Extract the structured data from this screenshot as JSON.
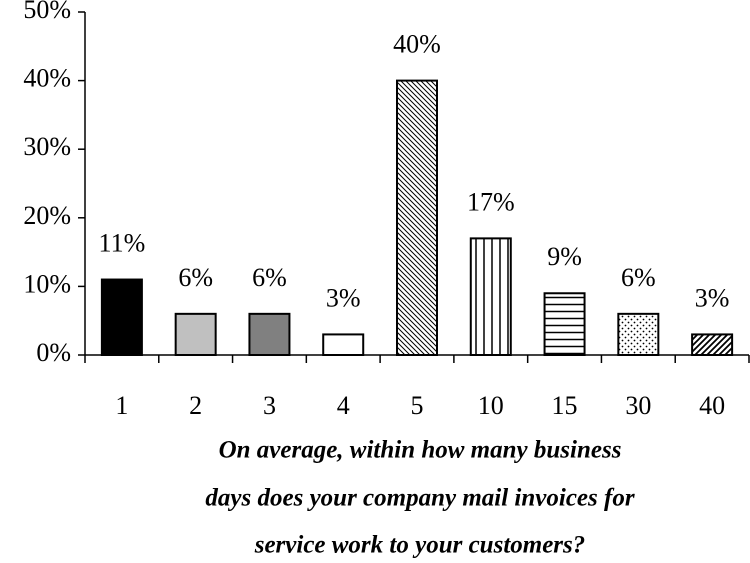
{
  "chart_data": {
    "type": "bar",
    "categories": [
      "1",
      "2",
      "3",
      "4",
      "5",
      "10",
      "15",
      "30",
      "40"
    ],
    "values": [
      11,
      6,
      6,
      3,
      40,
      17,
      9,
      6,
      3
    ],
    "value_labels": [
      "11%",
      "6%",
      "6%",
      "3%",
      "40%",
      "17%",
      "9%",
      "6%",
      "3%"
    ],
    "colors": [
      "#000000",
      "#c0c0c0",
      "#808080",
      "#ffffff",
      "#ffffff",
      "#ffffff",
      "#ffffff",
      "#ffffff",
      "#ffffff"
    ],
    "patterns": [
      "solid",
      "solid",
      "solid",
      "solid",
      "backslash",
      "vertical",
      "horizontal",
      "dots",
      "slash"
    ],
    "ylim": [
      0,
      50
    ],
    "yticks": [
      {
        "value": 0,
        "label": "0%"
      },
      {
        "value": 10,
        "label": "10%"
      },
      {
        "value": 20,
        "label": "20%"
      },
      {
        "value": 30,
        "label": "30%"
      },
      {
        "value": 40,
        "label": "40%"
      },
      {
        "value": 50,
        "label": "50%"
      }
    ],
    "xlabel": [
      "On average, within how many business",
      "days does your company mail invoices for",
      "service work to your customers?"
    ],
    "grid": false
  }
}
